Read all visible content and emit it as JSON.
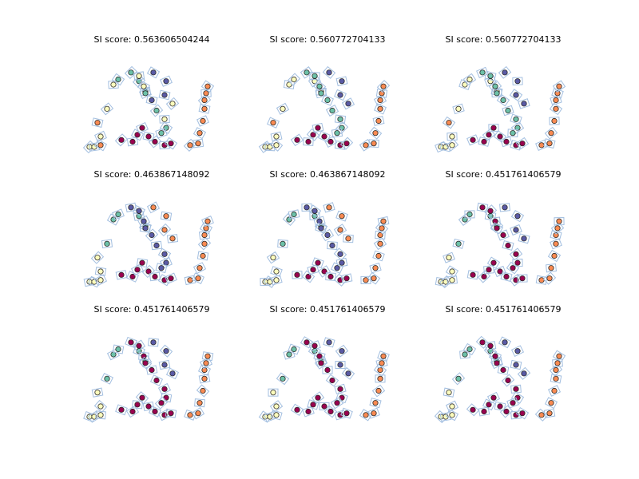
{
  "chart_data": {
    "type": "scatter",
    "description_grid": "3x3 small multiples",
    "titles": [
      "SI score: 0.563606504244",
      "SI score: 0.560772704133",
      "SI score: 0.560772704133",
      "SI score: 0.463867148092",
      "SI score: 0.463867148092",
      "SI score: 0.451761406579",
      "SI score: 0.451761406579",
      "SI score: 0.451761406579",
      "SI score: 0.451761406579"
    ],
    "axes_visible": false,
    "xlim": [
      0,
      160
    ],
    "ylim": [
      0,
      120
    ],
    "cluster_colors": {
      "A": "#fcfcbc",
      "B": "#6cc1a8",
      "C": "#5a5aa5",
      "D": "#f98a52",
      "E": "#99034f"
    },
    "groups": [
      "arc",
      "zig",
      "curve",
      "cup",
      "right"
    ],
    "panel_colors": [
      {
        "arc": [
          "A",
          "A",
          "D",
          "A",
          "D",
          "A",
          "A",
          "B"
        ],
        "zig": [
          "B",
          "B",
          "C",
          "C",
          "C",
          "A"
        ],
        "curve": [
          "B",
          "A",
          "A",
          "B",
          "C",
          "B",
          "A",
          "B",
          "B"
        ],
        "cup": [
          "E",
          "E",
          "E",
          "E",
          "E",
          "E",
          "E",
          "E"
        ],
        "right": [
          "D",
          "D",
          "D",
          "D",
          "D",
          "D",
          "D",
          "D"
        ]
      },
      {
        "arc": [
          "A",
          "A",
          "A",
          "A",
          "D",
          "A",
          "A",
          "A"
        ],
        "zig": [
          "A",
          "A",
          "C",
          "C",
          "C",
          "C"
        ],
        "curve": [
          "B",
          "B",
          "B",
          "B",
          "B",
          "B",
          "B",
          "B",
          "B"
        ],
        "cup": [
          "E",
          "E",
          "E",
          "E",
          "E",
          "E",
          "E",
          "E"
        ],
        "right": [
          "D",
          "D",
          "D",
          "D",
          "D",
          "D",
          "D",
          "D"
        ]
      },
      {
        "arc": [
          "A",
          "A",
          "A",
          "A",
          "D",
          "A",
          "A",
          "A"
        ],
        "zig": [
          "A",
          "A",
          "C",
          "C",
          "C",
          "C"
        ],
        "curve": [
          "B",
          "B",
          "B",
          "B",
          "B",
          "B",
          "B",
          "B",
          "B"
        ],
        "cup": [
          "E",
          "E",
          "E",
          "E",
          "E",
          "E",
          "E",
          "E"
        ],
        "right": [
          "D",
          "D",
          "D",
          "D",
          "D",
          "D",
          "D",
          "D"
        ]
      },
      {
        "arc": [
          "A",
          "A",
          "A",
          "A",
          "A",
          "B",
          "B",
          "B"
        ],
        "zig": [
          "B",
          "B",
          "D",
          "D",
          "D",
          "D"
        ],
        "curve": [
          "C",
          "C",
          "C",
          "C",
          "C",
          "C",
          "C",
          "C",
          "C"
        ],
        "cup": [
          "E",
          "E",
          "E",
          "E",
          "E",
          "E",
          "E",
          "E"
        ],
        "right": [
          "D",
          "D",
          "D",
          "D",
          "D",
          "D",
          "D",
          "D"
        ]
      },
      {
        "arc": [
          "A",
          "A",
          "A",
          "A",
          "A",
          "B",
          "B",
          "B"
        ],
        "zig": [
          "B",
          "B",
          "D",
          "D",
          "D",
          "D"
        ],
        "curve": [
          "C",
          "C",
          "C",
          "C",
          "C",
          "C",
          "C",
          "C",
          "C"
        ],
        "cup": [
          "E",
          "E",
          "E",
          "E",
          "E",
          "E",
          "E",
          "E"
        ],
        "right": [
          "D",
          "D",
          "D",
          "D",
          "D",
          "D",
          "D",
          "D"
        ]
      },
      {
        "arc": [
          "A",
          "A",
          "A",
          "A",
          "A",
          "B",
          "B",
          "B"
        ],
        "zig": [
          "B",
          "B",
          "C",
          "C",
          "C",
          "C"
        ],
        "curve": [
          "E",
          "E",
          "E",
          "E",
          "E",
          "E",
          "E",
          "E",
          "E"
        ],
        "cup": [
          "E",
          "E",
          "E",
          "E",
          "E",
          "E",
          "E",
          "E"
        ],
        "right": [
          "D",
          "D",
          "D",
          "D",
          "D",
          "D",
          "D",
          "D"
        ]
      },
      {
        "arc": [
          "A",
          "A",
          "A",
          "A",
          "A",
          "B",
          "B",
          "B"
        ],
        "zig": [
          "B",
          "B",
          "C",
          "C",
          "C",
          "C"
        ],
        "curve": [
          "E",
          "E",
          "E",
          "E",
          "E",
          "E",
          "E",
          "E",
          "E"
        ],
        "cup": [
          "E",
          "E",
          "E",
          "E",
          "E",
          "E",
          "E",
          "E"
        ],
        "right": [
          "D",
          "D",
          "D",
          "D",
          "D",
          "D",
          "D",
          "D"
        ]
      },
      {
        "arc": [
          "A",
          "A",
          "A",
          "A",
          "A",
          "B",
          "B",
          "B"
        ],
        "zig": [
          "B",
          "B",
          "C",
          "C",
          "C",
          "C"
        ],
        "curve": [
          "E",
          "E",
          "E",
          "E",
          "E",
          "E",
          "E",
          "E",
          "E"
        ],
        "cup": [
          "E",
          "E",
          "E",
          "E",
          "E",
          "E",
          "E",
          "E"
        ],
        "right": [
          "D",
          "D",
          "D",
          "D",
          "D",
          "D",
          "D",
          "D"
        ]
      },
      {
        "arc": [
          "A",
          "A",
          "A",
          "A",
          "A",
          "B",
          "B",
          "B"
        ],
        "zig": [
          "B",
          "B",
          "C",
          "C",
          "C",
          "C"
        ],
        "curve": [
          "E",
          "E",
          "E",
          "E",
          "E",
          "E",
          "E",
          "E",
          "E"
        ],
        "cup": [
          "E",
          "E",
          "E",
          "E",
          "E",
          "E",
          "E",
          "E"
        ],
        "right": [
          "D",
          "D",
          "D",
          "D",
          "D",
          "D",
          "D",
          "D"
        ]
      }
    ],
    "groups_points": {
      "arc": [
        [
          2,
          12
        ],
        [
          8,
          12
        ],
        [
          16,
          14
        ],
        [
          16,
          24
        ],
        [
          12,
          40
        ],
        [
          24,
          56
        ],
        [
          32,
          84
        ],
        [
          38,
          90
        ]
      ],
      "zig": [
        [
          64,
          88
        ],
        [
          72,
          76
        ],
        [
          82,
          98
        ],
        [
          98,
          88
        ],
        [
          96,
          72
        ],
        [
          106,
          62
        ]
      ],
      "curve": [
        [
          54,
          98
        ],
        [
          64,
          94
        ],
        [
          70,
          82
        ],
        [
          72,
          74
        ],
        [
          80,
          66
        ],
        [
          86,
          54
        ],
        [
          96,
          44
        ],
        [
          98,
          34
        ],
        [
          92,
          28
        ]
      ],
      "cup": [
        [
          42,
          20
        ],
        [
          56,
          18
        ],
        [
          62,
          26
        ],
        [
          68,
          34
        ],
        [
          76,
          24
        ],
        [
          84,
          18
        ],
        [
          96,
          14
        ],
        [
          104,
          16
        ]
      ],
      "right": [
        [
          128,
          14
        ],
        [
          138,
          16
        ],
        [
          140,
          28
        ],
        [
          144,
          42
        ],
        [
          146,
          56
        ],
        [
          146,
          66
        ],
        [
          148,
          74
        ],
        [
          150,
          82
        ]
      ]
    }
  }
}
